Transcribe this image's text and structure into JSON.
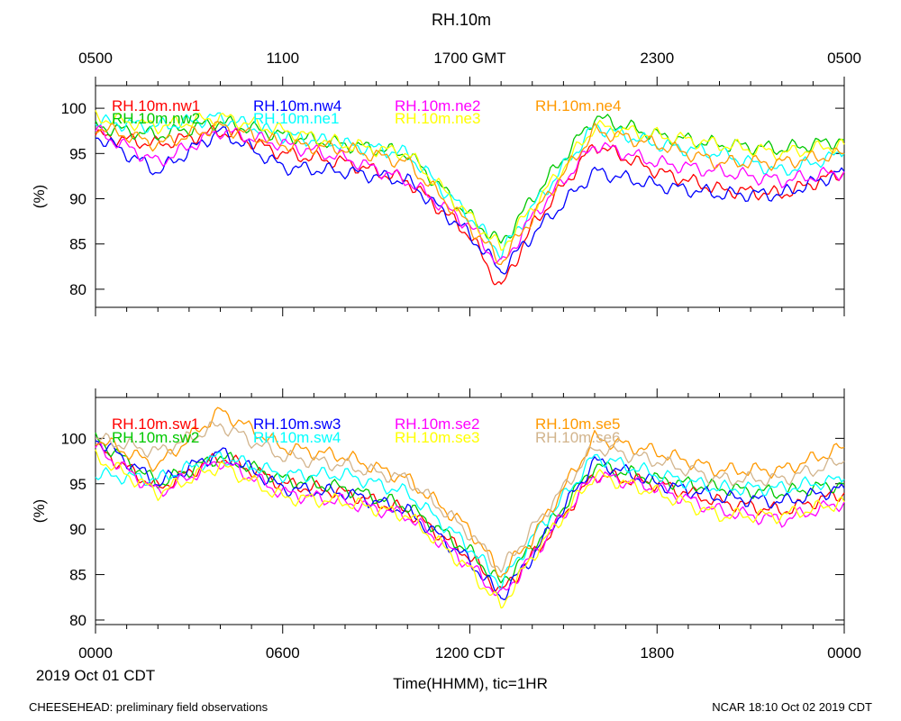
{
  "title": "RH.10m",
  "top_axis_ticks": [
    "0500",
    "1100",
    "1700 GMT",
    "2300",
    "0500"
  ],
  "bottom_axis_ticks": [
    "0000",
    "0600",
    "1200 CDT",
    "1800",
    "0000"
  ],
  "date_label": "2019 Oct 01 CDT",
  "xlabel": "Time(HHMM), tic=1HR",
  "footer_left": "CHEESEHEAD: preliminary field observations",
  "footer_right": "NCAR 18:10 Oct 02 2019 CDT",
  "chart_data": [
    {
      "type": "line",
      "panel": "top",
      "title": "RH.10m",
      "xlabel": "Time(HHMM), tic=1HR",
      "ylabel": "(%)",
      "x_unit": "hours since 0000 CDT (2019 Oct 01)",
      "xlim": [
        0,
        24
      ],
      "ylim": [
        78,
        102.5
      ],
      "yticks": [
        80,
        85,
        90,
        95,
        100
      ],
      "legend_position": "top-inside",
      "x": [
        0,
        2,
        4,
        6,
        8,
        10,
        12,
        13,
        14,
        16,
        18,
        20,
        22,
        24
      ],
      "series": [
        {
          "name": "RH.10m.nw1",
          "color": "#ff0000",
          "values": [
            97,
            96,
            97.5,
            95,
            94,
            92,
            86,
            80,
            87,
            96,
            93,
            91,
            90.5,
            93
          ]
        },
        {
          "name": "RH.10m.nw2",
          "color": "#00c800",
          "values": [
            98,
            97,
            98.5,
            97,
            96,
            95,
            88,
            85,
            90,
            99,
            97,
            96,
            95.5,
            96.5
          ]
        },
        {
          "name": "RH.10m.nw4",
          "color": "#0000ff",
          "values": [
            97,
            93,
            97.5,
            93.5,
            93,
            92,
            86,
            82,
            86,
            93,
            91.5,
            90.5,
            90.5,
            93
          ]
        },
        {
          "name": "RH.10m.ne1",
          "color": "#00ffff",
          "values": [
            98.5,
            98,
            99,
            97,
            96,
            95,
            88,
            84,
            89,
            98,
            96,
            95,
            93,
            95
          ]
        },
        {
          "name": "RH.10m.ne2",
          "color": "#ff00ff",
          "values": [
            97.5,
            94,
            97.5,
            96,
            94.5,
            92,
            87,
            82.5,
            88,
            96,
            94,
            93,
            92,
            93
          ]
        },
        {
          "name": "RH.10m.ne3",
          "color": "#ffff00",
          "values": [
            99,
            98,
            99,
            97.5,
            96,
            95,
            88,
            84.5,
            89,
            98,
            97,
            96,
            95,
            96
          ]
        },
        {
          "name": "RH.10m.ne4",
          "color": "#ff9900",
          "values": [
            98,
            96,
            98,
            96,
            95.5,
            94,
            87,
            83,
            88,
            97.5,
            96,
            94,
            94,
            95
          ]
        }
      ]
    },
    {
      "type": "line",
      "panel": "bottom",
      "title": "",
      "xlabel": "Time(HHMM), tic=1HR",
      "ylabel": "(%)",
      "x_unit": "hours since 0000 CDT (2019 Oct 01)",
      "xlim": [
        0,
        24
      ],
      "ylim": [
        79.5,
        104.5
      ],
      "yticks": [
        80,
        85,
        90,
        95,
        100
      ],
      "legend_position": "top-inside",
      "x": [
        0,
        2,
        4,
        6,
        8,
        10,
        12,
        13,
        14,
        16,
        18,
        20,
        22,
        24
      ],
      "series": [
        {
          "name": "RH.10m.sw1",
          "color": "#ff0000",
          "values": [
            99,
            94.5,
            98,
            95,
            94,
            92,
            87,
            83,
            87,
            96,
            95,
            93,
            92,
            94
          ]
        },
        {
          "name": "RH.10m.sw2",
          "color": "#00c800",
          "values": [
            100,
            95,
            98,
            95.5,
            94.5,
            92.5,
            87.5,
            84,
            88,
            97,
            95.5,
            94.5,
            94,
            95
          ]
        },
        {
          "name": "RH.10m.sw3",
          "color": "#0000ff",
          "values": [
            100,
            95,
            98.5,
            94.5,
            94,
            92,
            86.5,
            82.5,
            87,
            97.5,
            95,
            93.5,
            93,
            94.5
          ]
        },
        {
          "name": "RH.10m.sw4",
          "color": "#00ffff",
          "values": [
            96,
            95.5,
            98,
            96,
            96,
            94,
            88,
            84,
            89,
            98,
            96,
            94.5,
            94.5,
            95.5
          ]
        },
        {
          "name": "RH.10m.se2",
          "color": "#ff00ff",
          "values": [
            99,
            94,
            97.5,
            94,
            93,
            91.5,
            86,
            82.5,
            87,
            96,
            94.5,
            92,
            91,
            93
          ]
        },
        {
          "name": "RH.10m.se3",
          "color": "#ffff00",
          "values": [
            98,
            94,
            97,
            93.5,
            93,
            91.5,
            85.5,
            81.5,
            87,
            96,
            94,
            91.5,
            91.5,
            93
          ]
        },
        {
          "name": "RH.10m.se5",
          "color": "#ff9900",
          "values": [
            100,
            97,
            103,
            99,
            98,
            95.5,
            90,
            85,
            89,
            100,
            98.5,
            96.5,
            96.5,
            99
          ]
        },
        {
          "name": "RH.10m.se6",
          "color": "#d2b48c",
          "values": [
            100,
            98.5,
            101.5,
            98,
            97,
            95.5,
            89.5,
            85.5,
            90,
            99,
            97.5,
            95.5,
            95.5,
            97.5
          ]
        }
      ]
    }
  ]
}
